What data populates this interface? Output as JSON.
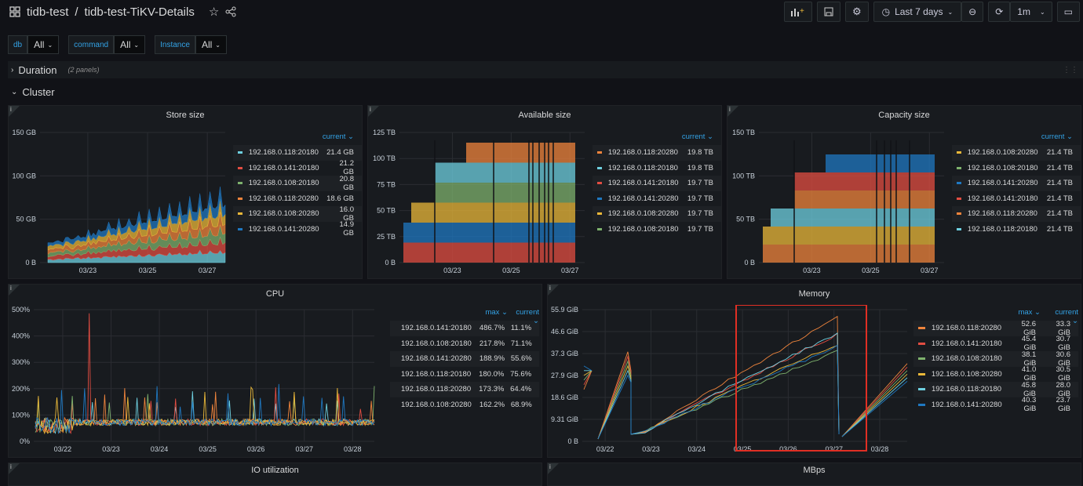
{
  "breadcrumb": {
    "folder": "tidb-test",
    "separator": "/",
    "dashboard": "tidb-test-TiKV-Details"
  },
  "toolbar": {
    "time_range": "Last 7 days",
    "refresh": "1m"
  },
  "variables": [
    {
      "label": "db",
      "value": "All"
    },
    {
      "label": "command",
      "value": "All"
    },
    {
      "label": "Instance",
      "value": "All"
    }
  ],
  "rows": {
    "duration": {
      "title": "Duration",
      "count": "(2 panels)"
    },
    "cluster": {
      "title": "Cluster"
    }
  },
  "colors": {
    "cyan": "#73bfb8",
    "red": "#e24d42",
    "green": "#7eb26d",
    "orange": "#ef843c",
    "yellow": "#eab839",
    "blue": "#1f78c1",
    "lightblue": "#6ed0e0"
  },
  "panels": {
    "store": {
      "title": "Store size",
      "legend_col": "current",
      "yticks": [
        "150 GB",
        "100 GB",
        "50 GB",
        "0 B"
      ],
      "xticks": [
        "03/23",
        "03/25",
        "03/27"
      ],
      "legend": [
        {
          "name": "192.168.0.118:20180",
          "color": "#6ed0e0",
          "current": "21.4 GB"
        },
        {
          "name": "192.168.0.141:20180",
          "color": "#e24d42",
          "current": "21.2 GB"
        },
        {
          "name": "192.168.0.108:20180",
          "color": "#7eb26d",
          "current": "20.8 GB"
        },
        {
          "name": "192.168.0.118:20280",
          "color": "#ef843c",
          "current": "18.6 GB"
        },
        {
          "name": "192.168.0.108:20280",
          "color": "#eab839",
          "current": "16.0 GB"
        },
        {
          "name": "192.168.0.141:20280",
          "color": "#1f78c1",
          "current": "14.9 GB"
        }
      ]
    },
    "available": {
      "title": "Available size",
      "legend_col": "current",
      "yticks": [
        "125 TB",
        "100 TB",
        "75 TB",
        "50 TB",
        "25 TB",
        "0 B"
      ],
      "xticks": [
        "03/23",
        "03/25",
        "03/27"
      ],
      "legend": [
        {
          "name": "192.168.0.118:20280",
          "color": "#ef843c",
          "current": "19.8 TB"
        },
        {
          "name": "192.168.0.118:20180",
          "color": "#6ed0e0",
          "current": "19.8 TB"
        },
        {
          "name": "192.168.0.141:20180",
          "color": "#e24d42",
          "current": "19.7 TB"
        },
        {
          "name": "192.168.0.141:20280",
          "color": "#1f78c1",
          "current": "19.7 TB"
        },
        {
          "name": "192.168.0.108:20280",
          "color": "#eab839",
          "current": "19.7 TB"
        },
        {
          "name": "192.168.0.108:20180",
          "color": "#7eb26d",
          "current": "19.7 TB"
        }
      ]
    },
    "capacity": {
      "title": "Capacity size",
      "legend_col": "current",
      "yticks": [
        "150 TB",
        "100 TB",
        "50 TB",
        "0 B"
      ],
      "xticks": [
        "03/23",
        "03/25",
        "03/27"
      ],
      "legend": [
        {
          "name": "192.168.0.108:20280",
          "color": "#eab839",
          "current": "21.4 TB"
        },
        {
          "name": "192.168.0.108:20180",
          "color": "#7eb26d",
          "current": "21.4 TB"
        },
        {
          "name": "192.168.0.141:20280",
          "color": "#1f78c1",
          "current": "21.4 TB"
        },
        {
          "name": "192.168.0.141:20180",
          "color": "#e24d42",
          "current": "21.4 TB"
        },
        {
          "name": "192.168.0.118:20280",
          "color": "#ef843c",
          "current": "21.4 TB"
        },
        {
          "name": "192.168.0.118:20180",
          "color": "#6ed0e0",
          "current": "21.4 TB"
        }
      ]
    },
    "cpu": {
      "title": "CPU",
      "legend_cols": [
        "max",
        "current"
      ],
      "yticks": [
        "500%",
        "400%",
        "300%",
        "200%",
        "100%",
        "0%"
      ],
      "xticks": [
        "03/22",
        "03/23",
        "03/24",
        "03/25",
        "03/26",
        "03/27",
        "03/28"
      ],
      "legend": [
        {
          "name": "192.168.0.141:20180",
          "color": "#e24d42",
          "max": "486.7%",
          "current": "11.1%"
        },
        {
          "name": "192.168.0.108:20180",
          "color": "#7eb26d",
          "max": "217.8%",
          "current": "71.1%"
        },
        {
          "name": "192.168.0.141:20280",
          "color": "#1f78c1",
          "max": "188.9%",
          "current": "55.6%"
        },
        {
          "name": "192.168.0.118:20180",
          "color": "#6ed0e0",
          "max": "180.0%",
          "current": "75.6%"
        },
        {
          "name": "192.168.0.118:20280",
          "color": "#ef843c",
          "max": "173.3%",
          "current": "64.4%"
        },
        {
          "name": "192.168.0.108:20280",
          "color": "#eab839",
          "max": "162.2%",
          "current": "68.9%"
        }
      ]
    },
    "memory": {
      "title": "Memory",
      "legend_cols": [
        "max",
        "current"
      ],
      "yticks": [
        "55.9 GiB",
        "46.6 GiB",
        "37.3 GiB",
        "27.9 GiB",
        "18.6 GiB",
        "9.31 GiB",
        "0 B"
      ],
      "xticks": [
        "03/22",
        "03/23",
        "03/24",
        "03/25",
        "03/26",
        "03/27",
        "03/28"
      ],
      "legend": [
        {
          "name": "192.168.0.118:20280",
          "color": "#ef843c",
          "max": "52.6 GiB",
          "current": "33.3 GiB"
        },
        {
          "name": "192.168.0.141:20180",
          "color": "#e24d42",
          "max": "45.4 GiB",
          "current": "30.7 GiB"
        },
        {
          "name": "192.168.0.108:20180",
          "color": "#7eb26d",
          "max": "38.1 GiB",
          "current": "30.6 GiB"
        },
        {
          "name": "192.168.0.108:20280",
          "color": "#eab839",
          "max": "41.0 GiB",
          "current": "30.5 GiB"
        },
        {
          "name": "192.168.0.118:20180",
          "color": "#6ed0e0",
          "max": "45.8 GiB",
          "current": "28.0 GiB"
        },
        {
          "name": "192.168.0.141:20280",
          "color": "#1f78c1",
          "max": "40.3 GiB",
          "current": "23.7 GiB"
        }
      ]
    },
    "io": {
      "title": "IO utilization"
    },
    "mbps": {
      "title": "MBps"
    }
  }
}
